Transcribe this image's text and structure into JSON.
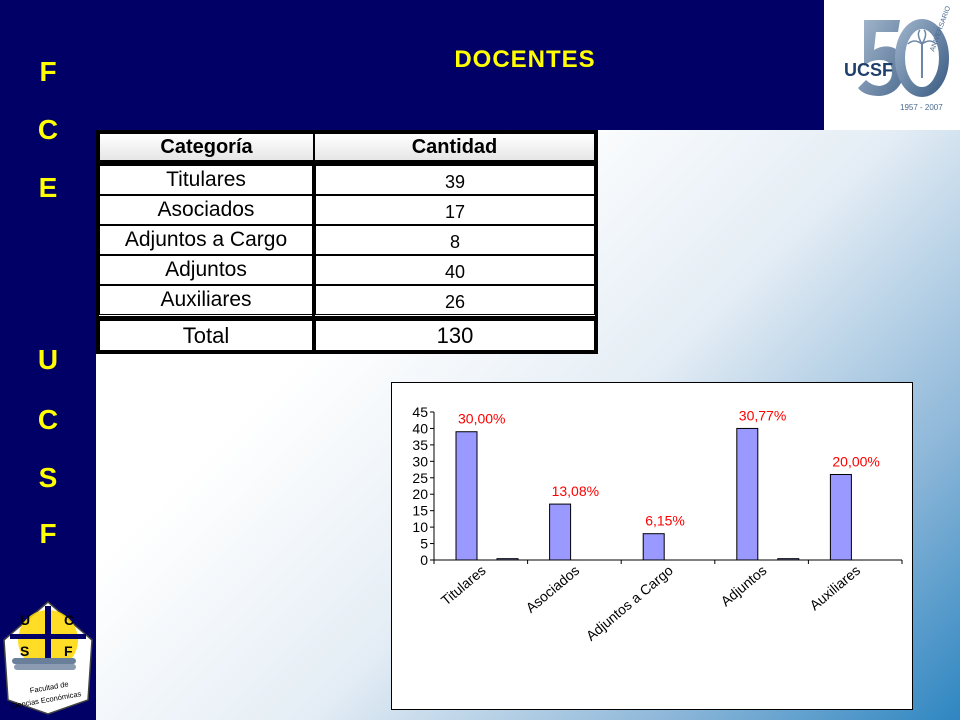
{
  "slide": {
    "title": "DOCENTES",
    "side_top": [
      "F",
      "C",
      "E"
    ],
    "side_bottom": [
      "U",
      "C",
      "S",
      "F"
    ],
    "colors": {
      "navy": "#000066",
      "yellow": "#ffff00",
      "bar": "#9999ff",
      "label_red": "#ff0000"
    }
  },
  "logo_ucsf": {
    "text": "UCSF",
    "number": "50",
    "arc_text": "ANIVERSARIO",
    "years": "1957 - 2007"
  },
  "logo_fce": {
    "letters": [
      "U",
      "C",
      "S",
      "F"
    ],
    "caption_line1": "Facultad de",
    "caption_line2": "Ciencias Económicas"
  },
  "table": {
    "headers": [
      "Categoría",
      "Cantidad"
    ],
    "rows": [
      {
        "label": "Titulares",
        "value": "39"
      },
      {
        "label": "Asociados",
        "value": "17"
      },
      {
        "label": "Adjuntos a Cargo",
        "value": "8"
      },
      {
        "label": "Adjuntos",
        "value": "40"
      },
      {
        "label": "Auxiliares",
        "value": "26"
      }
    ],
    "total_label": "Total",
    "total_value": "130"
  },
  "chart_data": {
    "type": "bar",
    "categories": [
      "Titulares",
      "Asociados",
      "Adjuntos a Cargo",
      "Adjuntos",
      "Auxiliares"
    ],
    "values": [
      39,
      17,
      8,
      40,
      26
    ],
    "small_bars": [
      0.4,
      0,
      0,
      0.4,
      0
    ],
    "data_labels": [
      "30,00%",
      "13,08%",
      "6,15%",
      "30,77%",
      "20,00%"
    ],
    "yticks": [
      "0",
      "5",
      "10",
      "15",
      "20",
      "25",
      "30",
      "35",
      "40",
      "45"
    ],
    "ylim": [
      0,
      45
    ],
    "title": "",
    "xlabel": "",
    "ylabel": "",
    "grid": false,
    "legend": false
  }
}
